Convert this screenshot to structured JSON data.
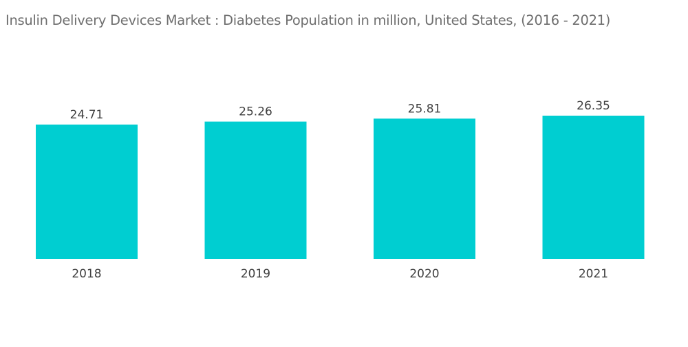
{
  "chart_data": {
    "type": "bar",
    "title": "Insulin Delivery Devices Market : Diabetes Population in million, United States, (2016 - 2021)",
    "categories": [
      "2018",
      "2019",
      "2020",
      "2021"
    ],
    "values": [
      24.71,
      25.26,
      25.81,
      26.35
    ],
    "value_labels": [
      "24.71",
      "25.26",
      "25.81",
      "26.35"
    ],
    "xlabel": "",
    "ylabel": "",
    "ylim": [
      0,
      26.35
    ],
    "grid": false,
    "legend": "none",
    "bar_color": "#00CED1"
  }
}
